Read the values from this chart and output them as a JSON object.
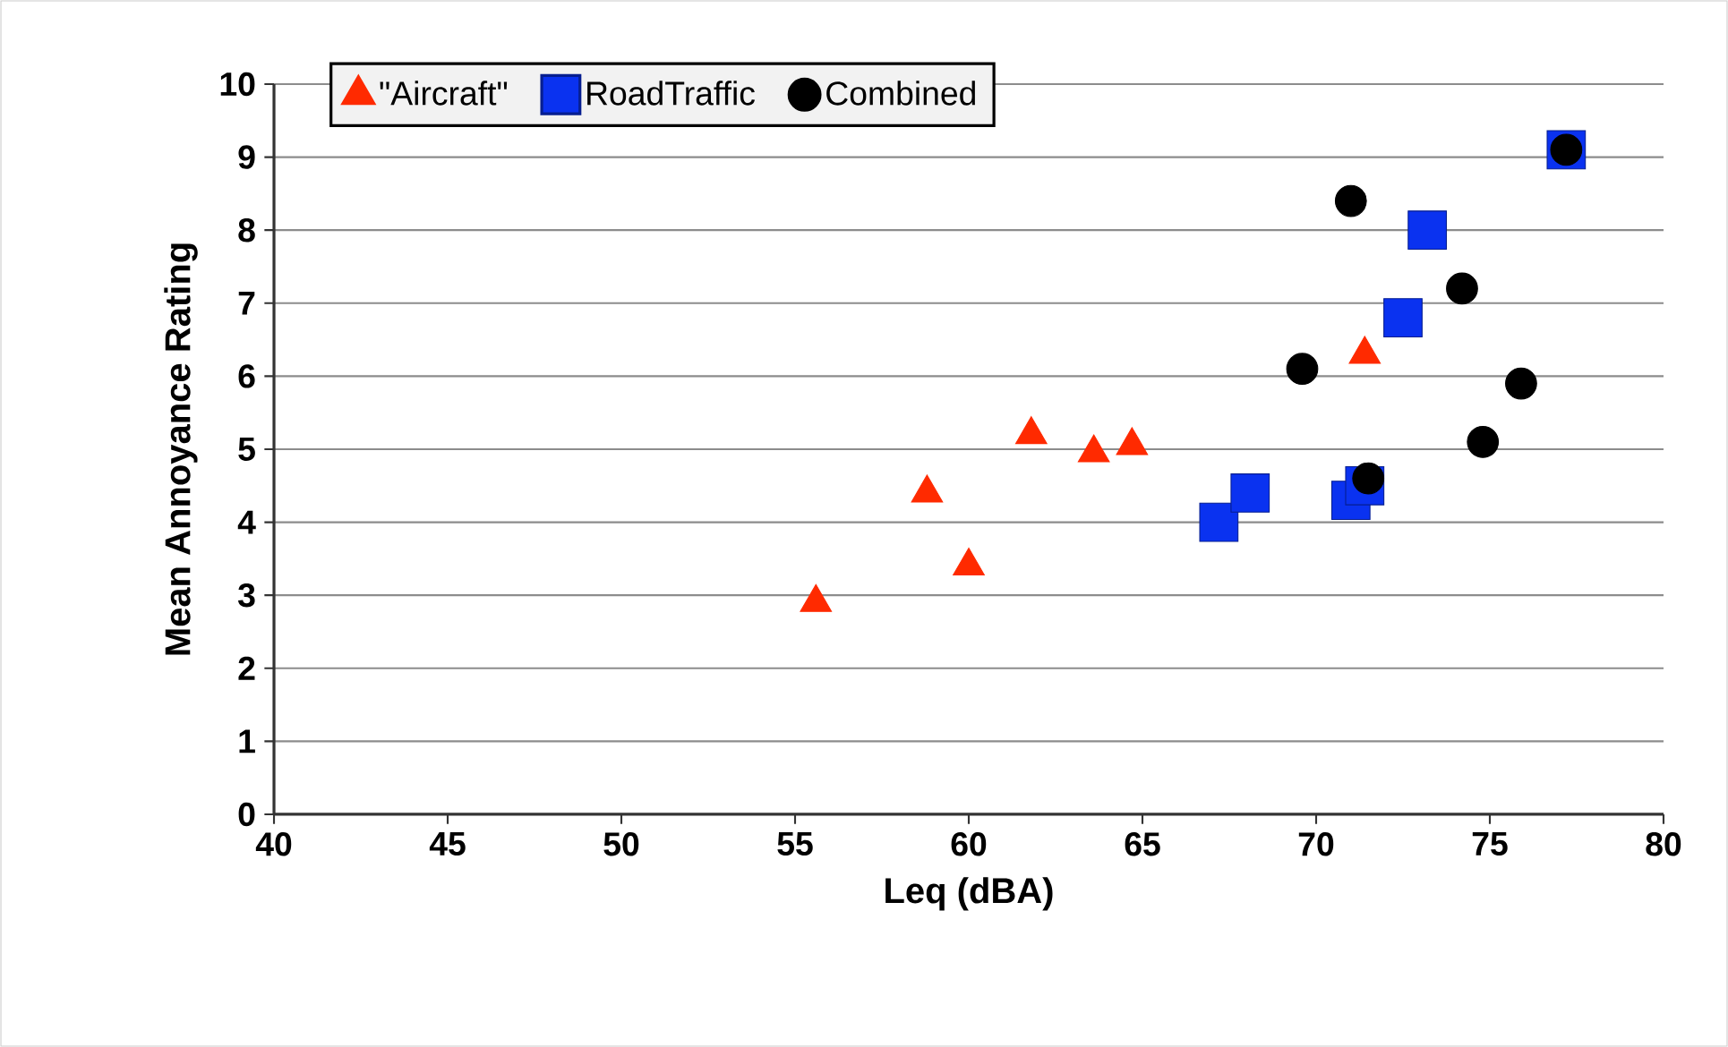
{
  "chart_data": {
    "type": "scatter",
    "xlabel": "Leq (dBA)",
    "ylabel": "Mean Annoyance Rating",
    "xlim": [
      40,
      80
    ],
    "xticks": [
      40,
      45,
      50,
      55,
      60,
      65,
      70,
      75,
      80
    ],
    "ylim": [
      0,
      10
    ],
    "yticks": [
      0,
      1,
      2,
      3,
      4,
      5,
      6,
      7,
      8,
      9,
      10
    ],
    "grid": "y",
    "legend": "top left",
    "series": [
      {
        "name": "\"Aircraft\"",
        "color": "#ff2a00",
        "marker": "triangle",
        "x": [
          55.6,
          58.8,
          60.0,
          61.8,
          63.6,
          64.7,
          71.4
        ],
        "values": [
          2.9,
          4.4,
          3.4,
          5.2,
          4.95,
          5.05,
          6.3
        ]
      },
      {
        "name": "RoadTraffic",
        "color": "#0a32f0",
        "marker": "square",
        "x": [
          67.2,
          68.1,
          71.0,
          71.4,
          72.5,
          73.2,
          77.2
        ],
        "values": [
          4.0,
          4.4,
          4.3,
          4.5,
          6.8,
          8.0,
          9.1
        ]
      },
      {
        "name": "Combined",
        "color": "#000000",
        "marker": "circle",
        "x": [
          69.6,
          71.0,
          71.5,
          74.2,
          74.8,
          75.9,
          77.2
        ],
        "values": [
          6.1,
          8.4,
          4.6,
          7.2,
          5.1,
          5.9,
          9.1
        ]
      }
    ]
  }
}
